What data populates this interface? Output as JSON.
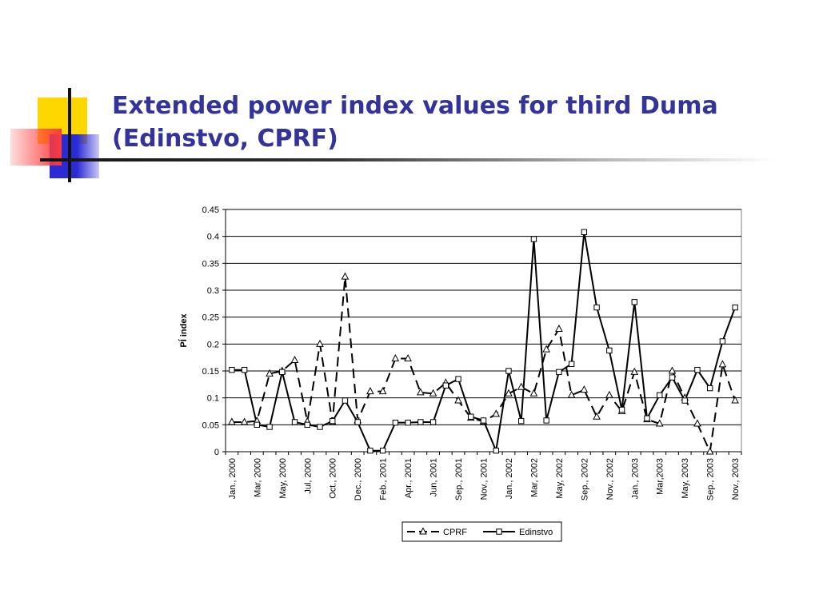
{
  "slide": {
    "title_line1": "Extended power index values  for third Duma",
    "title_line2": "(Edinstvo, CPRF)"
  },
  "chart_data": {
    "type": "line",
    "title": "",
    "xlabel": "",
    "ylabel": "PÍ index",
    "ylim": [
      0,
      0.45
    ],
    "yticks": [
      "0",
      "0.05",
      "0.1",
      "0.15",
      "0.2",
      "0.25",
      "0.3",
      "0.35",
      "0.4",
      "0.45"
    ],
    "grid": "horizontal",
    "legend_position": "bottom",
    "categories": [
      "Jan., 2000",
      "",
      "Mar, 2000",
      "",
      "May, 2000",
      "",
      "Jul, 2000",
      "",
      "Oct., 2000",
      "",
      "Dec., 2000",
      "",
      "Feb., 2001",
      "",
      "Apr., 2001",
      "",
      "Jun, 2001",
      "",
      "Sep., 2001",
      "",
      "Nov., 2001",
      "",
      "Jan., 2002",
      "",
      "Mar, 2002",
      "",
      "May, 2002",
      "",
      "Sep., 2002",
      "",
      "Nov., 2002",
      "",
      "Jan., 2003",
      "",
      "Mar,2003",
      "",
      "May, 2003",
      "",
      "Sep., 2003",
      "",
      "Nov., 2003"
    ],
    "series": [
      {
        "name": "CPRF",
        "style": "dashed",
        "marker": "triangle",
        "values": [
          0.055,
          0.055,
          0.057,
          0.145,
          0.15,
          0.17,
          0.056,
          0.2,
          0.055,
          0.325,
          0.058,
          0.112,
          0.112,
          0.173,
          0.173,
          0.11,
          0.108,
          0.128,
          0.095,
          0.063,
          0.056,
          0.07,
          0.108,
          0.12,
          0.108,
          0.19,
          0.228,
          0.105,
          0.115,
          0.065,
          0.105,
          0.075,
          0.148,
          0.06,
          0.052,
          0.15,
          0.1,
          0.052,
          0.0,
          0.162,
          0.095
        ]
      },
      {
        "name": "Edinstvo",
        "style": "solid",
        "marker": "square",
        "values": [
          0.152,
          0.152,
          0.05,
          0.046,
          0.148,
          0.055,
          0.05,
          0.046,
          0.057,
          0.095,
          0.055,
          0.002,
          0.002,
          0.054,
          0.054,
          0.055,
          0.055,
          0.123,
          0.135,
          0.065,
          0.058,
          0.002,
          0.15,
          0.057,
          0.395,
          0.058,
          0.148,
          0.163,
          0.408,
          0.268,
          0.188,
          0.078,
          0.278,
          0.062,
          0.105,
          0.138,
          0.095,
          0.152,
          0.118,
          0.205,
          0.268
        ]
      }
    ]
  }
}
